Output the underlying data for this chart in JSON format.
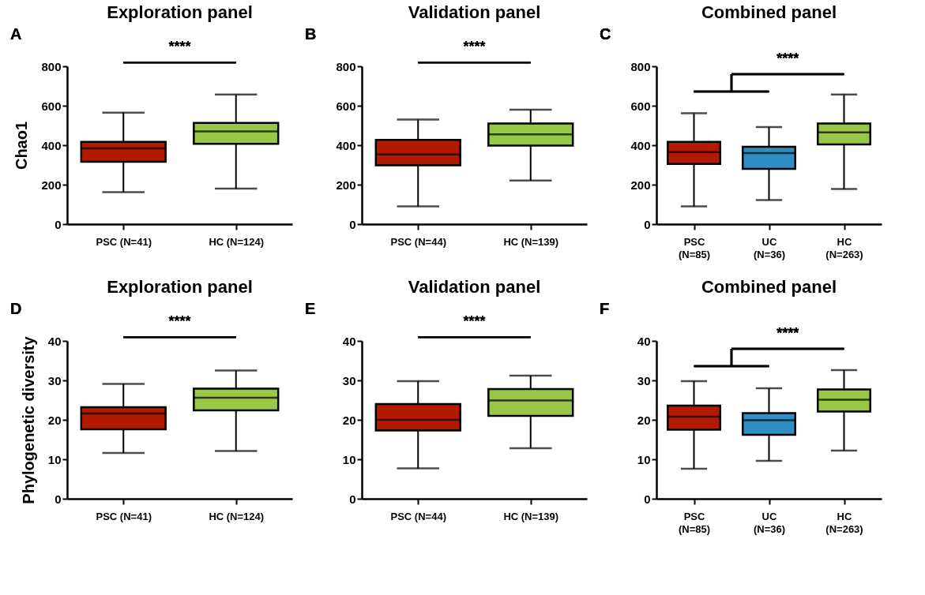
{
  "chart_data": [
    {
      "type": "box",
      "title": "Exploration panel",
      "ylabel": "Chao1",
      "categories": [
        "PSC (N=41)",
        "HC (N=124)"
      ],
      "colors": [
        "#b31b00",
        "#97c745"
      ],
      "ylim": [
        0,
        800
      ],
      "yticks": [
        0,
        200,
        400,
        600,
        800
      ],
      "annotations": [
        "A",
        "****"
      ],
      "boxes": [
        {
          "low": 162,
          "q1": 316,
          "median": 384,
          "q3": 417,
          "high": 565
        },
        {
          "low": 180,
          "q1": 407,
          "median": 470,
          "q3": 513,
          "high": 657
        }
      ]
    },
    {
      "type": "box",
      "title": "Validation panel",
      "categories": [
        "PSC (N=44)",
        "HC (N=139)"
      ],
      "colors": [
        "#b31b00",
        "#97c745"
      ],
      "ylim": [
        0,
        800
      ],
      "yticks": [
        0,
        200,
        400,
        600,
        800
      ],
      "annotations": [
        "B",
        "****"
      ],
      "boxes": [
        {
          "low": 90,
          "q1": 298,
          "median": 353,
          "q3": 427,
          "high": 530
        },
        {
          "low": 221,
          "q1": 398,
          "median": 455,
          "q3": 510,
          "high": 580
        }
      ]
    },
    {
      "type": "box",
      "title": "Combined panel",
      "categories": [
        "PSC\n(N=85)",
        "UC\n(N=36)",
        "HC\n(N=263)"
      ],
      "colors": [
        "#b31b00",
        "#2f8ec4",
        "#97c745"
      ],
      "ylim": [
        0,
        800
      ],
      "yticks": [
        0,
        200,
        400,
        600,
        800
      ],
      "annotations": [
        "C",
        "****"
      ],
      "boxes": [
        {
          "low": 90,
          "q1": 305,
          "median": 365,
          "q3": 417,
          "high": 562
        },
        {
          "low": 122,
          "q1": 280,
          "median": 360,
          "q3": 392,
          "high": 492
        },
        {
          "low": 178,
          "q1": 404,
          "median": 465,
          "q3": 510,
          "high": 657
        }
      ]
    },
    {
      "type": "box",
      "title": "Exploration panel",
      "ylabel": "Phylogenetic diversity",
      "categories": [
        "PSC (N=41)",
        "HC (N=124)"
      ],
      "colors": [
        "#b31b00",
        "#97c745"
      ],
      "ylim": [
        0,
        40
      ],
      "yticks": [
        0,
        10,
        20,
        30,
        40
      ],
      "annotations": [
        "D",
        "****"
      ],
      "boxes": [
        {
          "low": 11.6,
          "q1": 17.6,
          "median": 21.6,
          "q3": 23.2,
          "high": 29.1
        },
        {
          "low": 12.1,
          "q1": 22.4,
          "median": 25.6,
          "q3": 27.9,
          "high": 32.5
        }
      ]
    },
    {
      "type": "box",
      "title": "Validation panel",
      "categories": [
        "PSC (N=44)",
        "HC (N=139)"
      ],
      "colors": [
        "#b31b00",
        "#97c745"
      ],
      "ylim": [
        0,
        40
      ],
      "yticks": [
        0,
        10,
        20,
        30,
        40
      ],
      "annotations": [
        "E",
        "****"
      ],
      "boxes": [
        {
          "low": 7.7,
          "q1": 17.3,
          "median": 20.0,
          "q3": 24.0,
          "high": 29.8
        },
        {
          "low": 12.8,
          "q1": 21.0,
          "median": 24.9,
          "q3": 27.8,
          "high": 31.2
        }
      ]
    },
    {
      "type": "box",
      "title": "Combined panel",
      "categories": [
        "PSC\n(N=85)",
        "UC\n(N=36)",
        "HC\n(N=263)"
      ],
      "colors": [
        "#b31b00",
        "#2f8ec4",
        "#97c745"
      ],
      "ylim": [
        0,
        40
      ],
      "yticks": [
        0,
        10,
        20,
        30,
        40
      ],
      "annotations": [
        "F",
        "****"
      ],
      "boxes": [
        {
          "low": 7.6,
          "q1": 17.5,
          "median": 20.8,
          "q3": 23.6,
          "high": 29.8
        },
        {
          "low": 9.6,
          "q1": 16.2,
          "median": 19.9,
          "q3": 21.7,
          "high": 28.0
        },
        {
          "low": 12.2,
          "q1": 22.1,
          "median": 25.1,
          "q3": 27.7,
          "high": 32.6
        }
      ]
    }
  ]
}
